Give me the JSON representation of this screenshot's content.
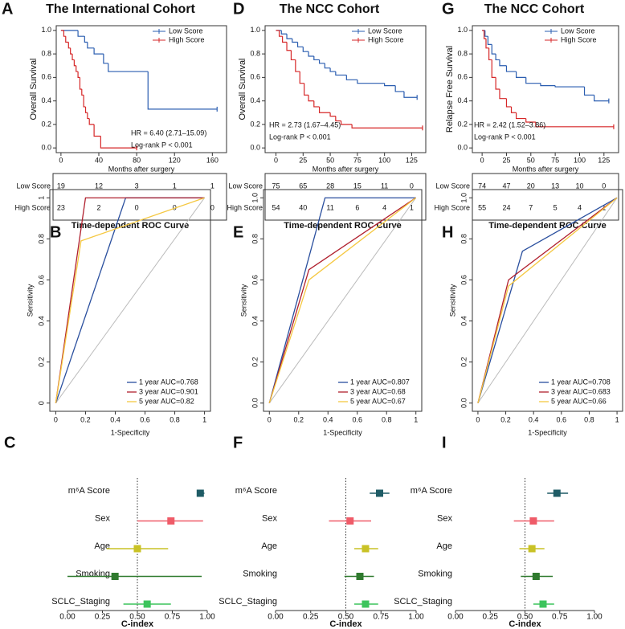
{
  "chart_data": [
    {
      "panel": "A",
      "type": "step",
      "title": "The International Cohort",
      "xlabel": "Months after surgery",
      "ylabel": "Overall Survival",
      "xlim": [
        -5,
        175
      ],
      "xticks": [
        0,
        40,
        80,
        120,
        160
      ],
      "ylim": [
        -0.04,
        1.04
      ],
      "yticks": [
        {
          "value": 0,
          "label": "0.0"
        },
        0.2,
        0.4,
        0.6,
        0.8,
        {
          "value": 1,
          "label": "1.0"
        }
      ],
      "series": [
        {
          "name": "Low Score",
          "color": "#2a5db0",
          "x": [
            0,
            18,
            25,
            28,
            35,
            45,
            50,
            92,
            165
          ],
          "values": [
            1,
            0.95,
            0.9,
            0.85,
            0.8,
            0.72,
            0.65,
            0.33,
            0.33
          ]
        },
        {
          "name": "High Score",
          "color": "#d62728",
          "x": [
            0,
            3,
            5,
            8,
            10,
            12,
            14,
            16,
            18,
            20,
            22,
            24,
            26,
            28,
            30,
            35,
            42,
            80
          ],
          "values": [
            1,
            0.95,
            0.9,
            0.85,
            0.8,
            0.75,
            0.7,
            0.65,
            0.6,
            0.5,
            0.45,
            0.35,
            0.3,
            0.25,
            0.2,
            0.1,
            0,
            0
          ]
        }
      ],
      "annotations": [
        "HR = 6.40 (2.71–15.09)",
        "Log-rank P < 0.001"
      ],
      "risk_table": [
        {
          "name": "Low Score",
          "values": [
            19,
            12,
            3,
            1,
            1
          ]
        },
        {
          "name": "High Score",
          "values": [
            23,
            2,
            0,
            0,
            0
          ]
        }
      ]
    },
    {
      "panel": "B",
      "type": "line",
      "title": "Time-dependent ROC Curve",
      "xlabel": "1-Specificity",
      "ylabel": "Sensitivity",
      "xlim": [
        -0.04,
        1.04
      ],
      "xticks": [
        0,
        0.2,
        0.4,
        0.6,
        0.8,
        1
      ],
      "ylim": [
        -0.04,
        1.04
      ],
      "yticks": [
        0,
        0.2,
        0.4,
        0.6,
        0.8,
        1
      ],
      "series": [
        {
          "name": "1 year AUC=0.768",
          "color": "#2a4f9e",
          "x": [
            0,
            0.47,
            1
          ],
          "values": [
            0,
            1,
            1
          ]
        },
        {
          "name": "3 year AUC=0.901",
          "color": "#b0202e",
          "x": [
            0,
            0.2,
            1
          ],
          "values": [
            0,
            1,
            1
          ]
        },
        {
          "name": "5 year AUC=0.82",
          "color": "#f5c842",
          "x": [
            0,
            0.17,
            1
          ],
          "values": [
            0,
            0.79,
            1
          ]
        }
      ]
    },
    {
      "panel": "C",
      "type": "forest",
      "xlabel": "C-index",
      "xlim": [
        0,
        1
      ],
      "xticks": [
        {
          "value": 0,
          "label": "0.00"
        },
        0.25,
        {
          "value": 0.5,
          "label": "0.50"
        },
        0.75,
        {
          "value": 1,
          "label": "1.00"
        }
      ],
      "reference_line": 0.5,
      "categories": [
        "m⁶A Score",
        "Sex",
        "Age",
        "Smoking",
        "SCLC_Staging"
      ],
      "values": [
        0.95,
        0.74,
        0.5,
        0.34,
        0.57
      ],
      "lower": [
        0.93,
        0.5,
        0.28,
        0,
        0.4
      ],
      "upper": [
        0.98,
        0.97,
        0.72,
        0.96,
        0.74
      ],
      "colors": [
        "#1f5c66",
        "#ef5b68",
        "#c9c226",
        "#2f7a2e",
        "#3cc45c"
      ]
    },
    {
      "panel": "D",
      "type": "step",
      "title": "The NCC Cohort",
      "xlabel": "Months after surgery",
      "ylabel": "Overall Survival",
      "xlim": [
        -10,
        138
      ],
      "xticks": [
        0,
        25,
        50,
        75,
        100,
        125
      ],
      "ylim": [
        -0.04,
        1.04
      ],
      "yticks": [
        {
          "value": 0,
          "label": "0.0"
        },
        0.2,
        0.4,
        0.6,
        0.8,
        {
          "value": 1,
          "label": "1.0"
        }
      ],
      "series": [
        {
          "name": "Low Score",
          "color": "#2a5db0",
          "x": [
            0,
            5,
            10,
            15,
            20,
            25,
            30,
            35,
            40,
            45,
            50,
            55,
            65,
            75,
            100,
            110,
            118,
            130
          ],
          "values": [
            1,
            0.97,
            0.93,
            0.9,
            0.86,
            0.82,
            0.78,
            0.75,
            0.72,
            0.68,
            0.65,
            0.62,
            0.58,
            0.55,
            0.53,
            0.48,
            0.43,
            0.43
          ]
        },
        {
          "name": "High Score",
          "color": "#d62728",
          "x": [
            0,
            3,
            6,
            10,
            14,
            18,
            22,
            26,
            30,
            35,
            40,
            50,
            55,
            60,
            70,
            135
          ],
          "values": [
            1,
            0.95,
            0.9,
            0.83,
            0.75,
            0.65,
            0.55,
            0.45,
            0.4,
            0.35,
            0.3,
            0.27,
            0.23,
            0.2,
            0.17,
            0.17
          ]
        }
      ],
      "annotations": [
        "HR = 2.73 (1.67–4.45)",
        "Log-rank P < 0.001"
      ],
      "risk_table": [
        {
          "name": "Low Score",
          "values": [
            75,
            65,
            28,
            15,
            11,
            0
          ]
        },
        {
          "name": "High Score",
          "values": [
            54,
            40,
            11,
            6,
            4,
            1
          ]
        }
      ]
    },
    {
      "panel": "E",
      "type": "line",
      "title": "Time-dependent ROC Curve",
      "xlabel": "1-Specificity",
      "ylabel": "Sensitivity",
      "xlim": [
        -0.04,
        1.04
      ],
      "xticks": [
        0,
        0.2,
        0.4,
        0.6,
        0.8,
        1
      ],
      "ylim": [
        -0.04,
        1.04
      ],
      "yticks": [
        {
          "value": 0,
          "label": "0.0"
        },
        0.2,
        0.4,
        0.6,
        0.8,
        {
          "value": 1,
          "label": "1.0"
        }
      ],
      "series": [
        {
          "name": "1 year AUC=0.807",
          "color": "#2a4f9e",
          "x": [
            0,
            0.38,
            1
          ],
          "values": [
            0,
            1,
            1
          ]
        },
        {
          "name": "3 year AUC=0.68",
          "color": "#b0202e",
          "x": [
            0,
            0.27,
            1
          ],
          "values": [
            0,
            0.65,
            1
          ]
        },
        {
          "name": "5 year AUC=0.67",
          "color": "#f5c842",
          "x": [
            0,
            0.27,
            1
          ],
          "values": [
            0,
            0.6,
            1
          ]
        }
      ]
    },
    {
      "panel": "F",
      "type": "forest",
      "xlabel": "C-index",
      "xlim": [
        0,
        1
      ],
      "xticks": [
        {
          "value": 0,
          "label": "0.00"
        },
        0.25,
        {
          "value": 0.5,
          "label": "0.50"
        },
        0.75,
        {
          "value": 1,
          "label": "1.00"
        }
      ],
      "reference_line": 0.5,
      "categories": [
        "m⁶A Score",
        "Sex",
        "Age",
        "Smoking",
        "SCLC_Staging"
      ],
      "values": [
        0.74,
        0.53,
        0.64,
        0.6,
        0.64
      ],
      "lower": [
        0.67,
        0.38,
        0.56,
        0.49,
        0.56
      ],
      "upper": [
        0.81,
        0.68,
        0.73,
        0.7,
        0.73
      ],
      "colors": [
        "#1f5c66",
        "#ef5b68",
        "#c9c226",
        "#2f7a2e",
        "#3cc45c"
      ]
    },
    {
      "panel": "G",
      "type": "step",
      "title": "The NCC Cohort",
      "xlabel": "Months after surgery",
      "ylabel": "Relapse Free Survival",
      "xlim": [
        -10,
        140
      ],
      "xticks": [
        0,
        25,
        50,
        75,
        100,
        125
      ],
      "ylim": [
        -0.04,
        1.04
      ],
      "yticks": [
        {
          "value": 0,
          "label": "0.0"
        },
        0.2,
        0.4,
        0.6,
        0.8,
        {
          "value": 1,
          "label": "1.0"
        }
      ],
      "series": [
        {
          "name": "Low Score",
          "color": "#2a5db0",
          "x": [
            0,
            3,
            6,
            10,
            14,
            18,
            25,
            35,
            45,
            60,
            75,
            105,
            115,
            130
          ],
          "values": [
            1,
            0.95,
            0.88,
            0.8,
            0.75,
            0.7,
            0.65,
            0.6,
            0.55,
            0.53,
            0.52,
            0.45,
            0.4,
            0.4
          ]
        },
        {
          "name": "High Score",
          "color": "#d62728",
          "x": [
            0,
            2,
            4,
            7,
            10,
            14,
            18,
            25,
            30,
            35,
            45,
            55,
            135
          ],
          "values": [
            1,
            0.93,
            0.85,
            0.75,
            0.6,
            0.5,
            0.42,
            0.35,
            0.3,
            0.25,
            0.22,
            0.18,
            0.18
          ]
        }
      ],
      "annotations": [
        "HR = 2.42 (1.52–3.86)",
        "Log-rank P < 0.001"
      ],
      "risk_table": [
        {
          "name": "Low Score",
          "values": [
            74,
            47,
            20,
            13,
            10,
            0
          ]
        },
        {
          "name": "High Score",
          "values": [
            55,
            24,
            7,
            5,
            4,
            1
          ]
        }
      ]
    },
    {
      "panel": "H",
      "type": "line",
      "title": "Time-dependent ROC Curve",
      "xlabel": "1-Specificity",
      "ylabel": "Sensitivity",
      "xlim": [
        -0.04,
        1.04
      ],
      "xticks": [
        0,
        0.2,
        0.4,
        0.6,
        0.8,
        1
      ],
      "ylim": [
        -0.04,
        1.04
      ],
      "yticks": [
        {
          "value": 0,
          "label": "0.0"
        },
        0.2,
        0.4,
        0.6,
        0.8,
        {
          "value": 1,
          "label": "1.0"
        }
      ],
      "series": [
        {
          "name": "1 year AUC=0.708",
          "color": "#2a4f9e",
          "x": [
            0,
            0.32,
            1
          ],
          "values": [
            0,
            0.74,
            1
          ]
        },
        {
          "name": "3 year AUC=0.683",
          "color": "#b0202e",
          "x": [
            0,
            0.22,
            1
          ],
          "values": [
            0,
            0.6,
            1
          ]
        },
        {
          "name": "5 year AUC=0.66",
          "color": "#f5c842",
          "x": [
            0,
            0.22,
            1
          ],
          "values": [
            0,
            0.57,
            1
          ]
        }
      ]
    },
    {
      "panel": "I",
      "type": "forest",
      "xlabel": "C-index",
      "xlim": [
        0,
        1
      ],
      "xticks": [
        {
          "value": 0,
          "label": "0.00"
        },
        0.25,
        {
          "value": 0.5,
          "label": "0.50"
        },
        0.75,
        {
          "value": 1,
          "label": "1.00"
        }
      ],
      "reference_line": 0.5,
      "categories": [
        "m⁶A Score",
        "Sex",
        "Age",
        "Smoking",
        "SCLC_Staging"
      ],
      "values": [
        0.73,
        0.56,
        0.55,
        0.58,
        0.63
      ],
      "lower": [
        0.66,
        0.42,
        0.46,
        0.47,
        0.56
      ],
      "upper": [
        0.81,
        0.71,
        0.64,
        0.7,
        0.71
      ],
      "colors": [
        "#1f5c66",
        "#ef5b68",
        "#c9c226",
        "#2f7a2e",
        "#3cc45c"
      ]
    }
  ]
}
